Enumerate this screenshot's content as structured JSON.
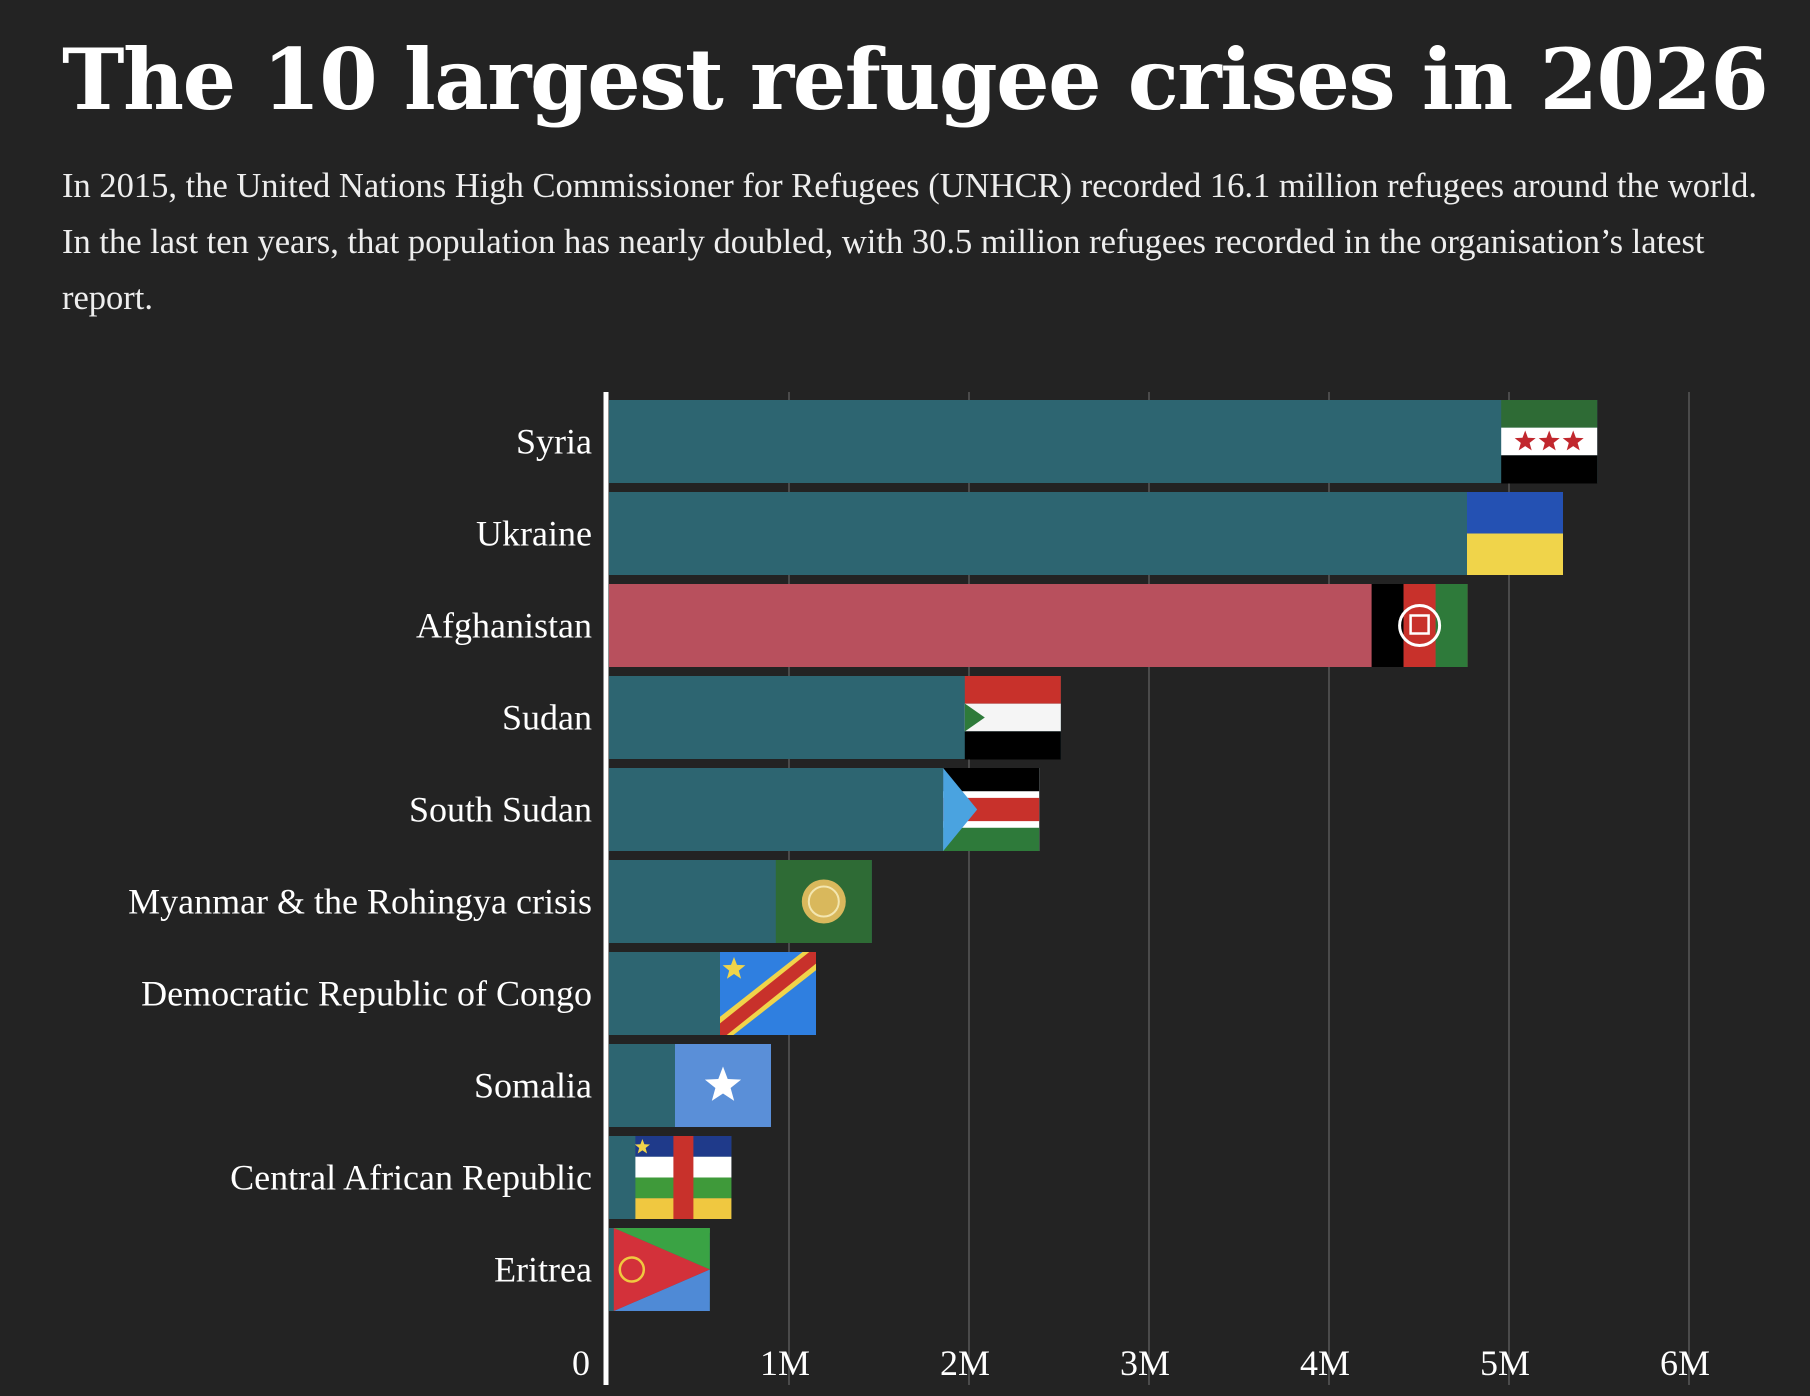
{
  "title": "The 10 largest refugee crises in 2026",
  "subtitle": "In 2015, the United Nations High Commissioner for Refugees (UNHCR) recorded 16.1 million refugees around the world. In the last ten years, that population has nearly doubled, with 30.5 million refugees recorded in the organisation’s latest report.",
  "colors": {
    "background": "#232323",
    "bar_default": "#2d6571",
    "bar_highlight": "#b8505d",
    "grid": "#4a4a4a",
    "axis": "#ffffff"
  },
  "chart_data": {
    "type": "bar",
    "orientation": "horizontal",
    "title": "The 10 largest refugee crises in 2026",
    "xlabel": "",
    "ylabel": "",
    "xlim": [
      0,
      6000000
    ],
    "grid": true,
    "highlight": "Afghanistan",
    "categories": [
      "Syria",
      "Ukraine",
      "Afghanistan",
      "Sudan",
      "South Sudan",
      "Myanmar & the Rohingya crisis",
      "Democratic Republic of Congo",
      "Somalia",
      "Central African Republic",
      "Eritrea"
    ],
    "values": [
      5490000,
      5300000,
      4770000,
      2510000,
      2390000,
      1460000,
      1150000,
      900000,
      680000,
      560000
    ],
    "flags": [
      "syria-flag-icon",
      "ukraine-flag-icon",
      "afghanistan-flag-icon",
      "sudan-flag-icon",
      "south-sudan-flag-icon",
      "rohingya-flag-icon",
      "dr-congo-flag-icon",
      "somalia-flag-icon",
      "car-flag-icon",
      "eritrea-flag-icon"
    ],
    "x_ticks": [
      {
        "value": 0,
        "label": "0"
      },
      {
        "value": 1000000,
        "label": "1M"
      },
      {
        "value": 2000000,
        "label": "2M"
      },
      {
        "value": 3000000,
        "label": "3M"
      },
      {
        "value": 4000000,
        "label": "4M"
      },
      {
        "value": 5000000,
        "label": "5M"
      },
      {
        "value": 6000000,
        "label": "6M"
      }
    ]
  }
}
